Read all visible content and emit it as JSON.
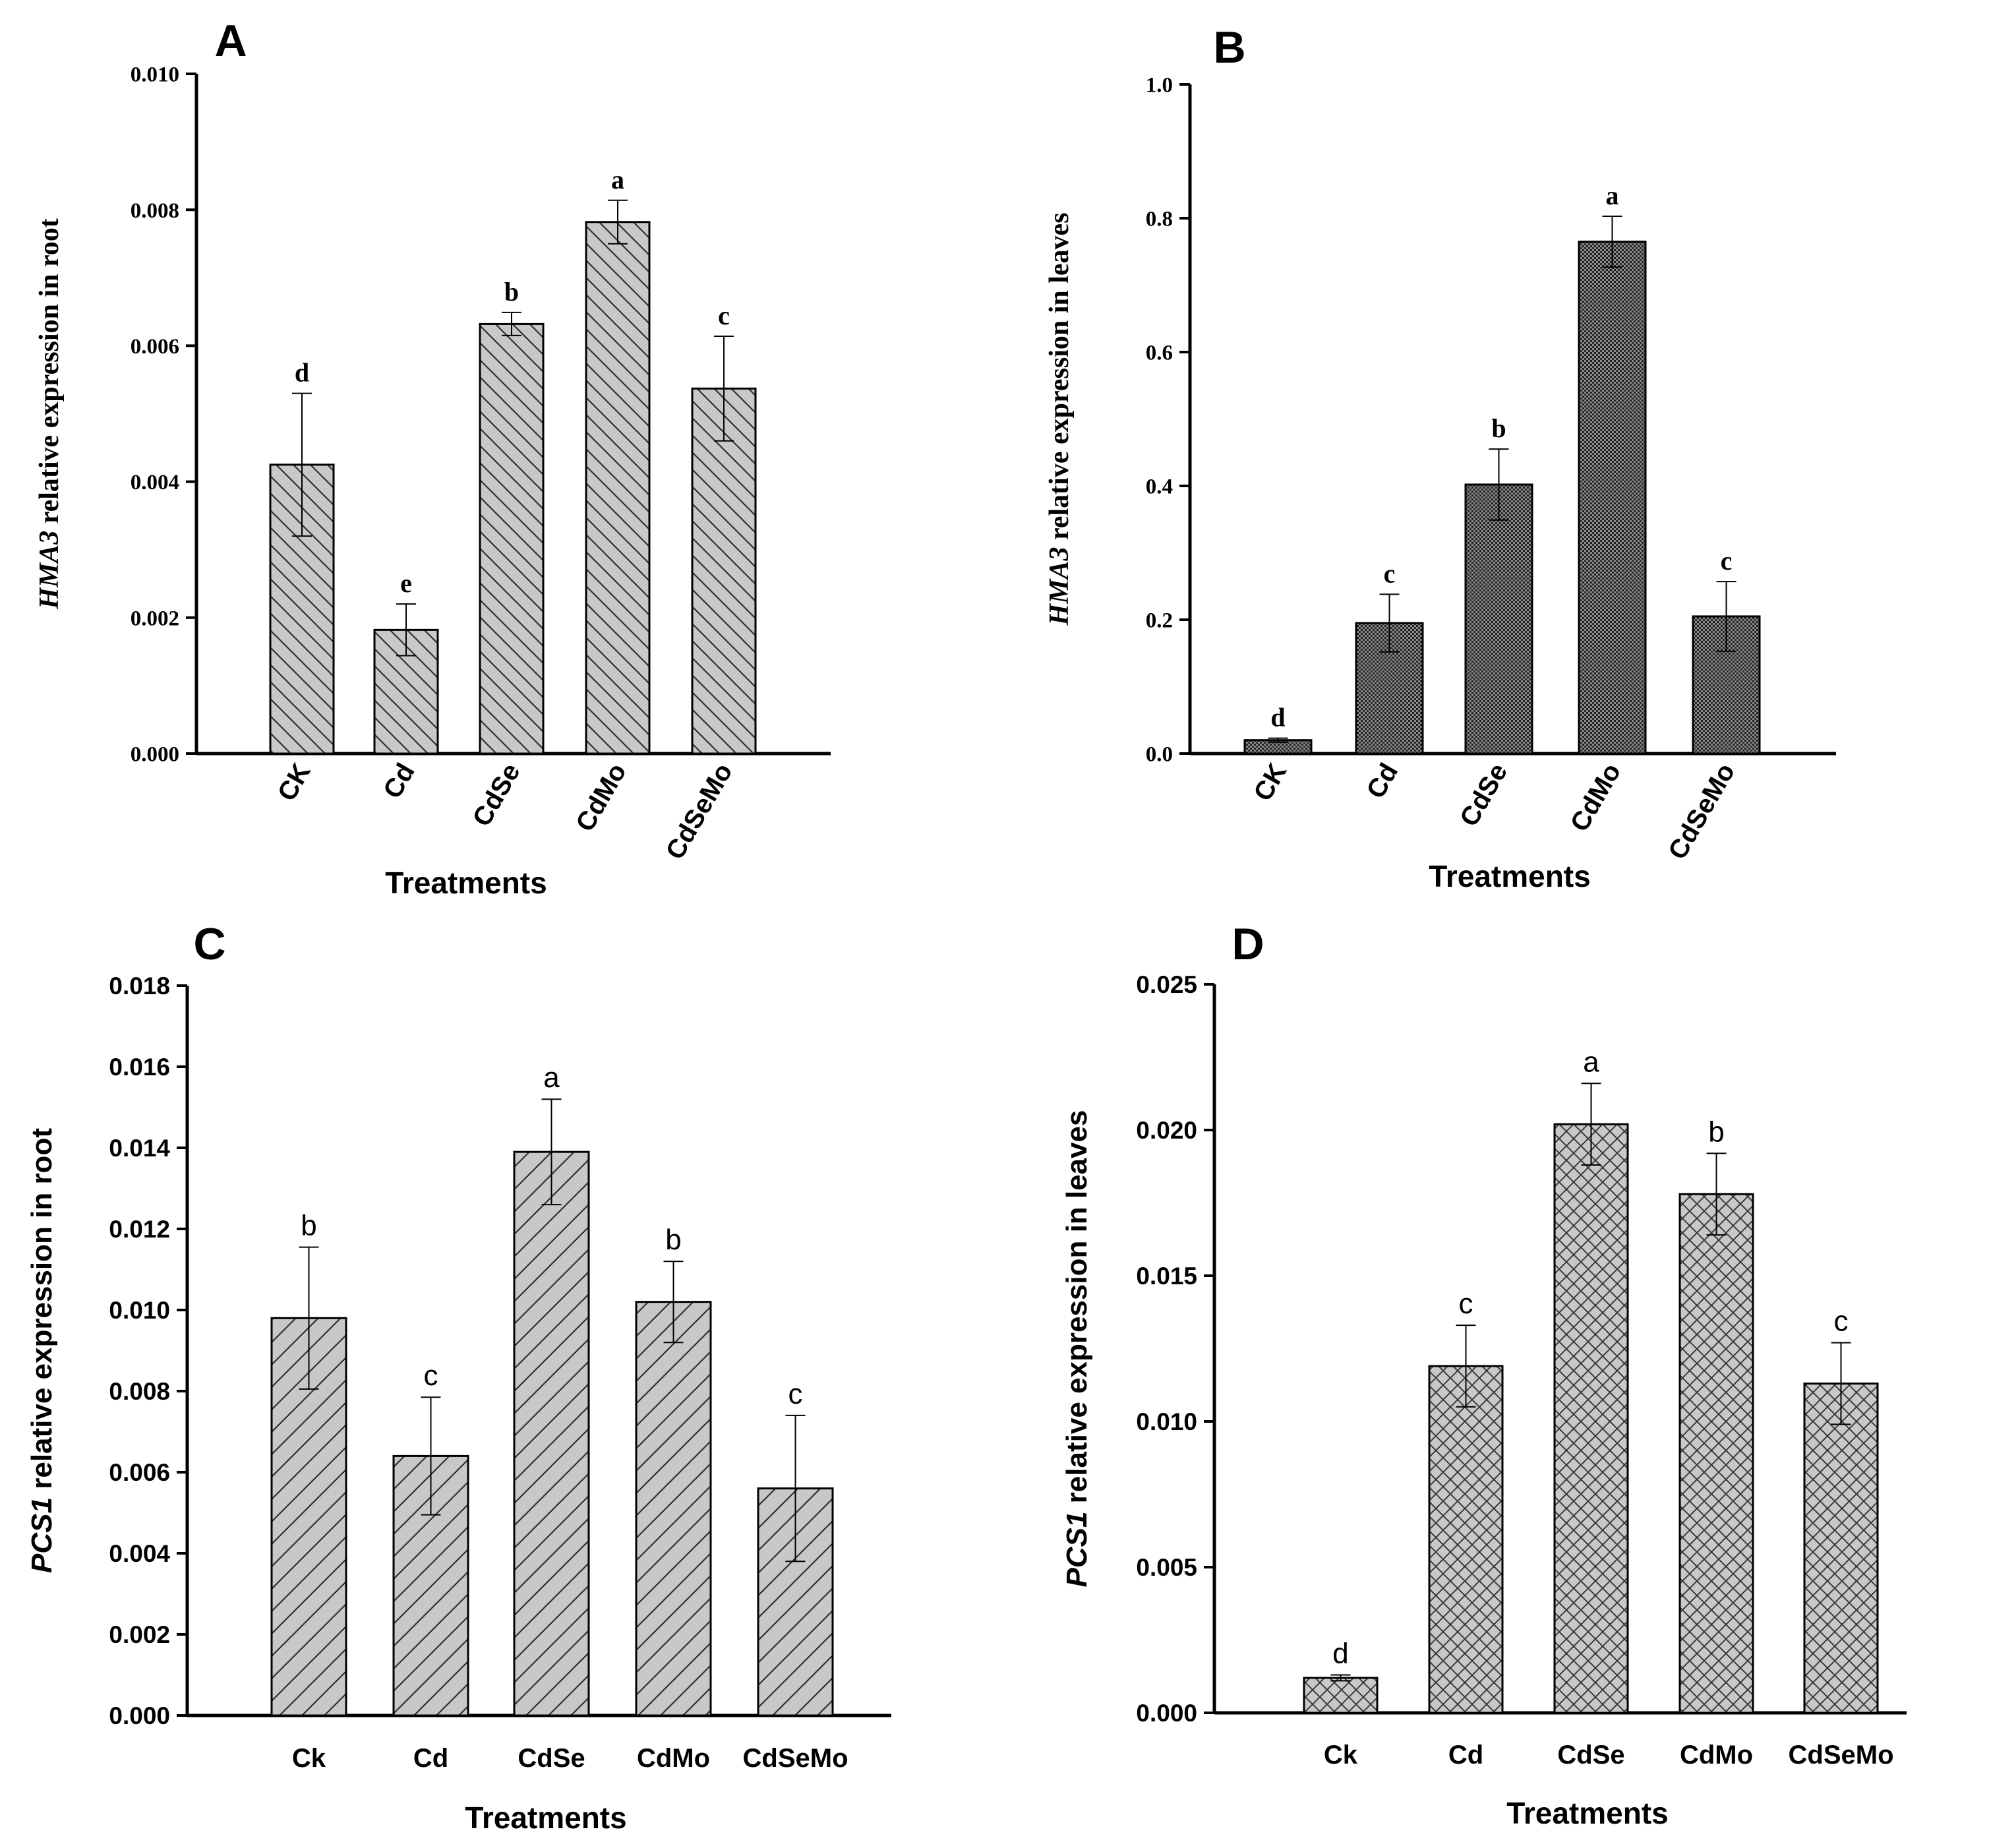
{
  "chart_data": [
    {
      "panel": "A",
      "type": "bar",
      "ylabel_gene": "HMA3",
      "ylabel_rest": " relative expression in root",
      "xlabel": "Treatments",
      "categories": [
        "CK",
        "Cd",
        "CdSe",
        "CdMo",
        "CdSeMo"
      ],
      "values": [
        0.00425,
        0.00182,
        0.00632,
        0.00782,
        0.00537
      ],
      "errors": [
        0.00105,
        0.00038,
        0.00017,
        0.00032,
        0.00077
      ],
      "letters": [
        "d",
        "e",
        "b",
        "a",
        "c"
      ],
      "ylim": [
        0,
        0.01
      ],
      "yticks": [
        "0.000",
        "0.002",
        "0.004",
        "0.006",
        "0.008",
        "0.010"
      ],
      "pattern": "hatch-backslash",
      "fill": "#c8c8c8",
      "x_tick_rotation": "rotated"
    },
    {
      "panel": "B",
      "type": "bar",
      "ylabel_gene": "HMA3",
      "ylabel_rest": " relative expression in leaves",
      "xlabel": "Treatments",
      "categories": [
        "CK",
        "Cd",
        "CdSe",
        "CdMo",
        "CdSeMo"
      ],
      "values": [
        0.02,
        0.195,
        0.402,
        0.765,
        0.205
      ],
      "errors": [
        0.003,
        0.043,
        0.053,
        0.038,
        0.052
      ],
      "letters": [
        "d",
        "c",
        "b",
        "a",
        "c"
      ],
      "ylim": [
        0,
        1.0
      ],
      "yticks": [
        "0.0",
        "0.2",
        "0.4",
        "0.6",
        "0.8",
        "1.0"
      ],
      "pattern": "dots",
      "fill": "#5a5a5a",
      "x_tick_rotation": "rotated"
    },
    {
      "panel": "C",
      "type": "bar",
      "ylabel_gene": "PCS1",
      "ylabel_rest": " relative expression in root",
      "xlabel": "Treatments",
      "categories": [
        "Ck",
        "Cd",
        "CdSe",
        "CdMo",
        "CdSeMo"
      ],
      "values": [
        0.0098,
        0.0064,
        0.0139,
        0.0102,
        0.0056
      ],
      "errors": [
        0.00175,
        0.00145,
        0.0013,
        0.001,
        0.0018
      ],
      "letters": [
        "b",
        "c",
        "a",
        "b",
        "c"
      ],
      "ylim": [
        0,
        0.018
      ],
      "yticks": [
        "0.000",
        "0.002",
        "0.004",
        "0.006",
        "0.008",
        "0.010",
        "0.012",
        "0.014",
        "0.016",
        "0.018"
      ],
      "pattern": "hatch-slash",
      "fill": "#c8c8c8",
      "x_tick_rotation": "horizontal"
    },
    {
      "panel": "D",
      "type": "bar",
      "ylabel_gene": "PCS1",
      "ylabel_rest": " relative expression in leaves",
      "xlabel": "Treatments",
      "categories": [
        "Ck",
        "Cd",
        "CdSe",
        "CdMo",
        "CdSeMo"
      ],
      "values": [
        0.0012,
        0.0119,
        0.0202,
        0.0178,
        0.0113
      ],
      "errors": [
        0.0001,
        0.0014,
        0.0014,
        0.0014,
        0.0014
      ],
      "letters": [
        "d",
        "c",
        "a",
        "b",
        "c"
      ],
      "ylim": [
        0,
        0.025
      ],
      "yticks": [
        "0.000",
        "0.005",
        "0.010",
        "0.015",
        "0.020",
        "0.025"
      ],
      "pattern": "crosshatch",
      "fill": "#c8c8c8",
      "x_tick_rotation": "horizontal"
    }
  ]
}
